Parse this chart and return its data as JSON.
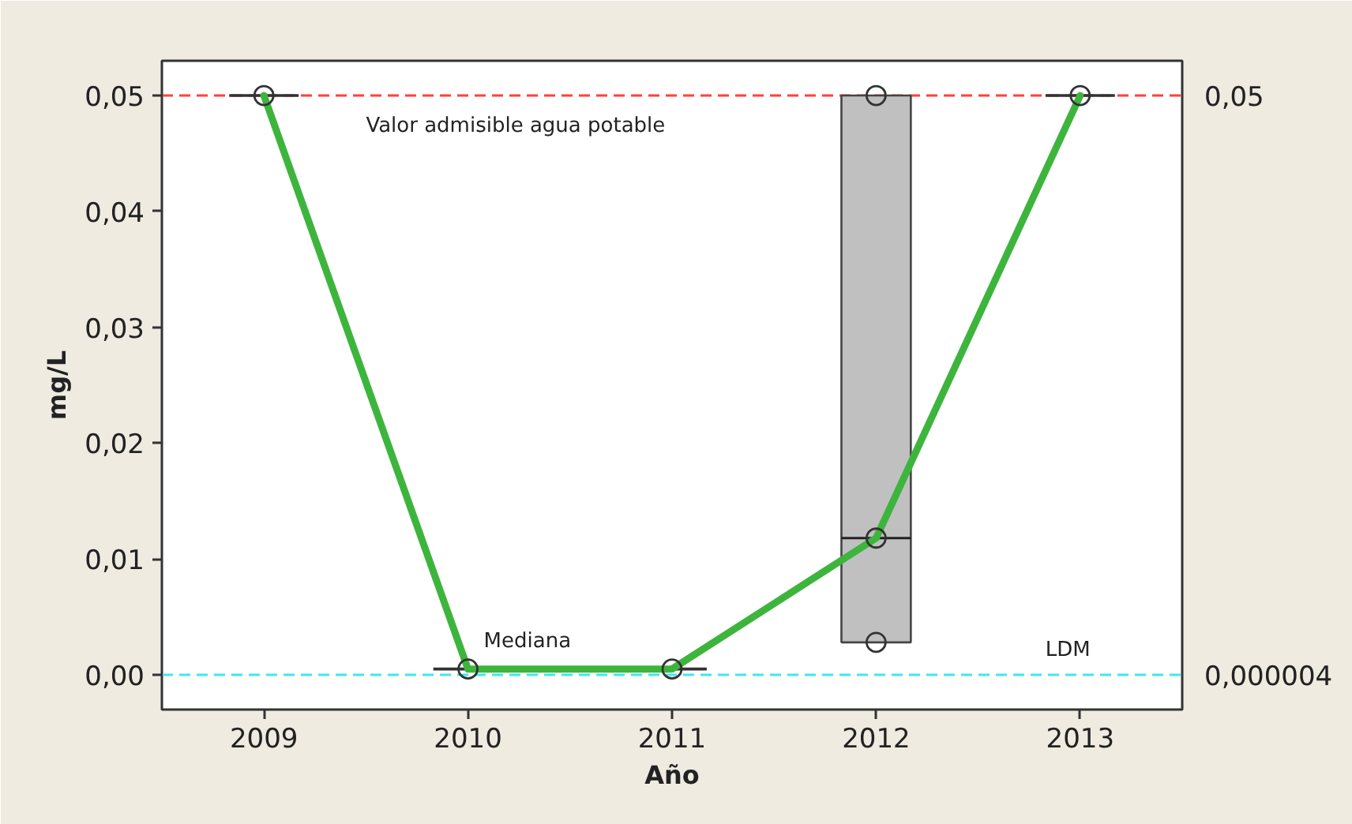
{
  "chart_data": {
    "type": "box",
    "xlabel": "Año",
    "ylabel": "mg/L",
    "x": [
      2009,
      2010,
      2011,
      2012,
      2013
    ],
    "xlim": [
      2008.5,
      2013.5
    ],
    "xticks": [
      2009,
      2010,
      2011,
      2012,
      2013
    ],
    "ylim": [
      -0.003,
      0.053
    ],
    "yticks": [
      {
        "value": 0,
        "label": "0,00"
      },
      {
        "value": 0.01,
        "label": "0,01"
      },
      {
        "value": 0.02,
        "label": "0,02"
      },
      {
        "value": 0.03,
        "label": "0,03"
      },
      {
        "value": 0.04,
        "label": "0,04"
      },
      {
        "value": 0.05,
        "label": "0,05"
      }
    ],
    "y2lim": [
      -0.003,
      0.053
    ],
    "y2ticks": [
      {
        "value": 4e-06,
        "label": "0,000004"
      },
      {
        "value": 0.05,
        "label": "0,05"
      }
    ],
    "series": [
      {
        "colors": [
          "#333333",
          "#333333",
          "#333333",
          "#c0c0c0",
          "#333333"
        ],
        "boxes": [
          {
            "low": 0.05,
            "q1": 0.05,
            "median": 0.05,
            "q3": 0.05,
            "high": 0.05
          },
          {
            "low": 0.0005,
            "q1": 0.0005,
            "median": 0.0005,
            "q3": 0.0005,
            "high": 0.0005
          },
          {
            "low": 0.0005,
            "q1": 0.0005,
            "median": 0.0005,
            "q3": 0.0005,
            "high": 0.0005
          },
          {
            "low": 0.0028,
            "q1": 0.0028,
            "median": 0.0118,
            "q3": 0.05,
            "high": 0.05
          },
          {
            "low": 0.05,
            "q1": 0.05,
            "median": 0.05,
            "q3": 0.05,
            "high": 0.05
          }
        ]
      },
      {
        "type": "line",
        "name": "Mediana",
        "color": "#3db53d",
        "values": [
          0.05,
          0.0005,
          0.0005,
          0.0118,
          0.05
        ]
      },
      {
        "type": "scatter",
        "color": "#333333",
        "marker": "circle",
        "x": [
          2009,
          2010,
          2011,
          2012,
          2012,
          2012,
          2013
        ],
        "values": [
          0.05,
          0.0005,
          0.0005,
          0.05,
          0.0118,
          0.0028,
          0.05
        ]
      }
    ],
    "ref_lines": [
      {
        "axis": "y",
        "value": 0.05,
        "label": "Valor admisible agua potable",
        "color": "#ff4040",
        "line_style": "dashed"
      },
      {
        "axis": "y",
        "value": 4e-06,
        "label": "LDM",
        "color": "#40e6f0",
        "line_style": "dashed"
      }
    ]
  }
}
